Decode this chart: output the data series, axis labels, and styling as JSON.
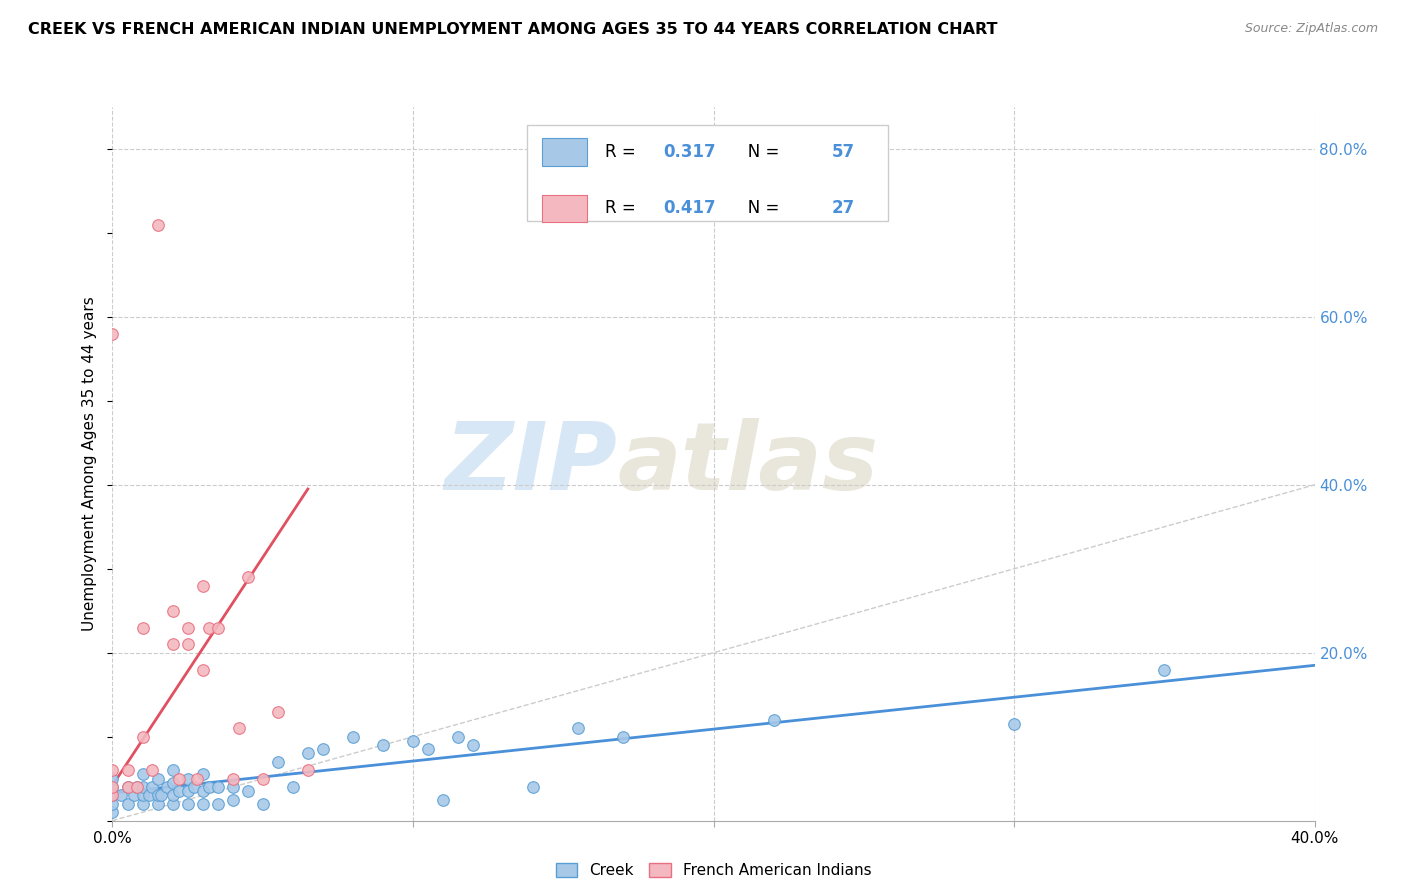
{
  "title": "CREEK VS FRENCH AMERICAN INDIAN UNEMPLOYMENT AMONG AGES 35 TO 44 YEARS CORRELATION CHART",
  "source": "Source: ZipAtlas.com",
  "ylabel": "Unemployment Among Ages 35 to 44 years",
  "xlim": [
    0.0,
    0.4
  ],
  "ylim": [
    0.0,
    0.85
  ],
  "creek_color": "#a8c8e8",
  "creek_edge": "#5a9fd4",
  "french_color": "#f4b8c0",
  "french_edge": "#e87080",
  "creek_R": 0.317,
  "creek_N": 57,
  "french_R": 0.417,
  "french_N": 27,
  "creek_line_color": "#4a90d9",
  "french_line_color": "#e05060",
  "diagonal_color": "#cccccc",
  "watermark_zip": "ZIP",
  "watermark_atlas": "atlas",
  "creek_scatter_x": [
    0.0,
    0.0,
    0.0,
    0.0,
    0.0,
    0.003,
    0.005,
    0.005,
    0.007,
    0.008,
    0.01,
    0.01,
    0.01,
    0.01,
    0.012,
    0.013,
    0.015,
    0.015,
    0.015,
    0.016,
    0.018,
    0.02,
    0.02,
    0.02,
    0.02,
    0.022,
    0.025,
    0.025,
    0.025,
    0.027,
    0.03,
    0.03,
    0.03,
    0.032,
    0.035,
    0.035,
    0.04,
    0.04,
    0.045,
    0.05,
    0.055,
    0.06,
    0.065,
    0.07,
    0.08,
    0.09,
    0.1,
    0.105,
    0.11,
    0.115,
    0.12,
    0.14,
    0.155,
    0.17,
    0.22,
    0.3,
    0.35
  ],
  "creek_scatter_y": [
    0.01,
    0.02,
    0.03,
    0.04,
    0.05,
    0.03,
    0.02,
    0.04,
    0.03,
    0.04,
    0.02,
    0.03,
    0.04,
    0.055,
    0.03,
    0.04,
    0.02,
    0.03,
    0.05,
    0.03,
    0.04,
    0.02,
    0.03,
    0.045,
    0.06,
    0.035,
    0.02,
    0.035,
    0.05,
    0.04,
    0.02,
    0.035,
    0.055,
    0.04,
    0.02,
    0.04,
    0.025,
    0.04,
    0.035,
    0.02,
    0.07,
    0.04,
    0.08,
    0.085,
    0.1,
    0.09,
    0.095,
    0.085,
    0.025,
    0.1,
    0.09,
    0.04,
    0.11,
    0.1,
    0.12,
    0.115,
    0.18
  ],
  "french_scatter_x": [
    0.0,
    0.0,
    0.0,
    0.0,
    0.005,
    0.005,
    0.008,
    0.01,
    0.01,
    0.013,
    0.015,
    0.02,
    0.02,
    0.022,
    0.025,
    0.025,
    0.028,
    0.03,
    0.03,
    0.032,
    0.035,
    0.04,
    0.042,
    0.045,
    0.05,
    0.055,
    0.065
  ],
  "french_scatter_y": [
    0.03,
    0.04,
    0.06,
    0.58,
    0.04,
    0.06,
    0.04,
    0.1,
    0.23,
    0.06,
    0.71,
    0.21,
    0.25,
    0.05,
    0.21,
    0.23,
    0.05,
    0.18,
    0.28,
    0.23,
    0.23,
    0.05,
    0.11,
    0.29,
    0.05,
    0.13,
    0.06
  ],
  "creek_trend_x": [
    0.0,
    0.4
  ],
  "creek_trend_y": [
    0.033,
    0.185
  ],
  "french_trend_x": [
    0.0,
    0.065
  ],
  "french_trend_y": [
    0.042,
    0.395
  ],
  "grid_color": "#cccccc",
  "bg_color": "#ffffff",
  "right_axis_color": "#4a90d9",
  "right_yticks": [
    0.2,
    0.4,
    0.6,
    0.8
  ],
  "right_yticklabels": [
    "20.0%",
    "40.0%",
    "60.0%",
    "80.0%"
  ],
  "xtick_labels_show": [
    "0.0%",
    "40.0%"
  ],
  "xtick_vals_show": [
    0.0,
    0.4
  ]
}
